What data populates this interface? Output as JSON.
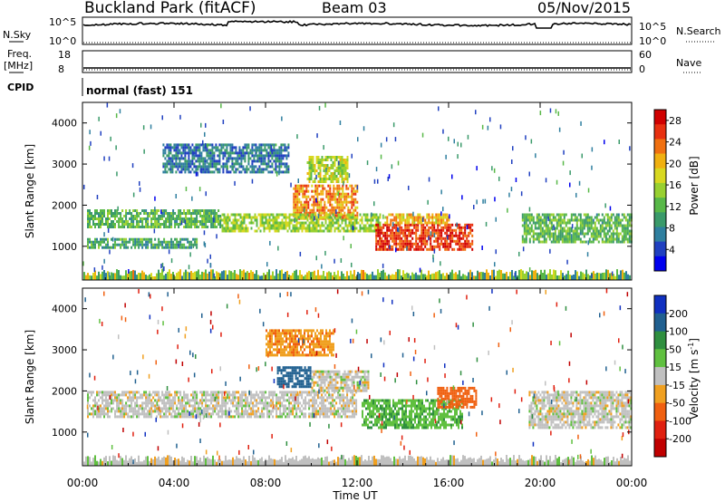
{
  "header": {
    "station": "Buckland Park (fitACF)",
    "beam": "Beam 03",
    "date": "05/Nov/2015"
  },
  "strip_labels": {
    "nsky": "N.Sky",
    "nsky_ticks": [
      "10^5",
      "10^0"
    ],
    "nsearch": "N.Search",
    "nsearch_ticks": [
      "10^5",
      "10^0"
    ],
    "freq": "Freq.",
    "freq_unit": "[MHz]",
    "freq_ticks": [
      "18",
      "8"
    ],
    "nave": "Nave",
    "nave_ticks": [
      "60",
      "0"
    ],
    "cpid": "CPID",
    "cpid_text": "normal (fast) 151"
  },
  "chart_data": [
    {
      "type": "heatmap",
      "name": "power",
      "ylabel": "Slant Range [km]",
      "xlabel": "",
      "x_ticks": [
        "00:00",
        "04:00",
        "08:00",
        "12:00",
        "16:00",
        "20:00",
        "00:00"
      ],
      "xlim_hours": [
        0,
        24
      ],
      "ylim_km": [
        180,
        4500
      ],
      "y_ticks": [
        1000,
        2000,
        3000,
        4000
      ],
      "colorbar": {
        "label": "Power [dB]",
        "ticks": [
          4,
          8,
          12,
          16,
          20,
          24,
          28
        ],
        "range": [
          0,
          30
        ],
        "colors": [
          "#0000ee",
          "#2040c0",
          "#2f7f9f",
          "#3a9a6a",
          "#58b848",
          "#98d030",
          "#d8d820",
          "#f0b010",
          "#f07010",
          "#e83010",
          "#d00000"
        ]
      },
      "regions": [
        {
          "t0": 9.2,
          "t1": 12.0,
          "r0": 1700,
          "r1": 2500,
          "value": 22
        },
        {
          "t0": 9.8,
          "t1": 11.6,
          "r0": 2600,
          "r1": 3200,
          "value": 16
        },
        {
          "t0": 6.0,
          "t1": 13.0,
          "r0": 1400,
          "r1": 1800,
          "value": 15
        },
        {
          "t0": 12.8,
          "t1": 17.0,
          "r0": 900,
          "r1": 1550,
          "value": 26
        },
        {
          "t0": 13.2,
          "t1": 16.0,
          "r0": 1550,
          "r1": 1800,
          "value": 20
        },
        {
          "t0": 0.2,
          "t1": 6.0,
          "r0": 1500,
          "r1": 1900,
          "value": 12
        },
        {
          "t0": 0.2,
          "t1": 5.0,
          "r0": 1000,
          "r1": 1200,
          "value": 10
        },
        {
          "t0": 19.2,
          "t1": 24.0,
          "r0": 1100,
          "r1": 1800,
          "value": 12
        },
        {
          "t0": 3.5,
          "t1": 9.0,
          "r0": 2800,
          "r1": 3500,
          "value": 7
        }
      ]
    },
    {
      "type": "heatmap",
      "name": "velocity",
      "ylabel": "Slant Range [km]",
      "xlabel": "Time UT",
      "x_ticks": [
        "00:00",
        "04:00",
        "08:00",
        "12:00",
        "16:00",
        "20:00",
        "00:00"
      ],
      "xlim_hours": [
        0,
        24
      ],
      "ylim_km": [
        180,
        4500
      ],
      "y_ticks": [
        1000,
        2000,
        3000,
        4000
      ],
      "colorbar": {
        "label": "Velocity [m s^-1]",
        "ticks": [
          "200",
          "100",
          "50",
          "15",
          "-15",
          "-50",
          "-100",
          "-200"
        ],
        "colors": [
          "#1030c0",
          "#206090",
          "#2f8f3f",
          "#60c040",
          "#c0c0c0",
          "#f0a020",
          "#f06010",
          "#e02010",
          "#c00000"
        ]
      },
      "regions": [
        {
          "t0": 0.2,
          "t1": 12.0,
          "r0": 1400,
          "r1": 2000,
          "value": 0
        },
        {
          "t0": 12.2,
          "t1": 16.6,
          "r0": 1100,
          "r1": 1800,
          "value": 40
        },
        {
          "t0": 15.5,
          "t1": 17.2,
          "r0": 1600,
          "r1": 2100,
          "value": -70
        },
        {
          "t0": 8.5,
          "t1": 10.0,
          "r0": 2100,
          "r1": 2600,
          "value": 150
        },
        {
          "t0": 8.0,
          "t1": 11.0,
          "r0": 2900,
          "r1": 3500,
          "value": -40
        },
        {
          "t0": 19.5,
          "t1": 24.0,
          "r0": 1100,
          "r1": 2000,
          "value": 0
        },
        {
          "t0": 10.0,
          "t1": 12.5,
          "r0": 2000,
          "r1": 2500,
          "value": 0
        }
      ]
    }
  ]
}
